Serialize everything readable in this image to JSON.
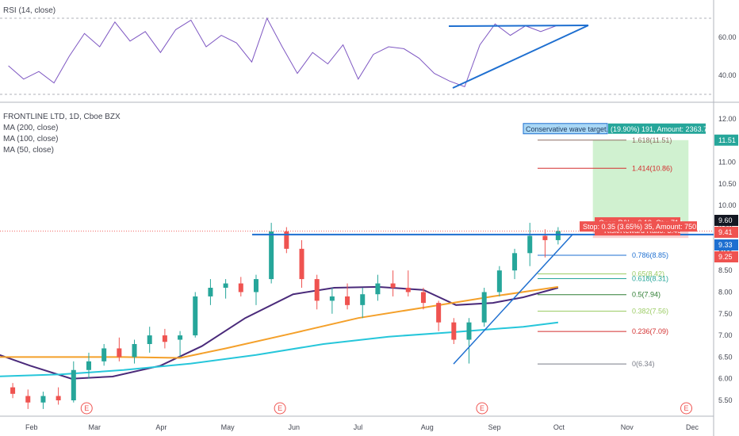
{
  "rsi_label": "RSI (14, close)",
  "main_label": "FRONTLINE LTD, 1D, Cboe BZX",
  "ma_labels": [
    "MA (200, close)",
    "MA (100, close)",
    "MA (50, close)"
  ],
  "colors": {
    "up": "#26a69a",
    "down": "#ef5350",
    "rsi": "#7e57c2",
    "trend": "#1e6fd0",
    "ma50": "#4a2a7a",
    "ma100": "#f4a02a",
    "ma200": "#26c6da",
    "target_zone": "#c8efc8",
    "stop_zone": "#f7c9c9"
  },
  "annotations": {
    "target_box": "Conservative wave target.",
    "target_stats": "(19.90%) 191, Amount: 2363.74",
    "open_pnl": "Open P&L: -0.19, Qty: 714",
    "rr_ratio": "Risk/Reward Ratio: 5.46",
    "stop_stats": "Stop: 0.35 (3.65%) 35, Amount: 750.1"
  },
  "chart_data": [
    {
      "type": "line",
      "title": "RSI (14, close)",
      "ylim": [
        28.5,
        72
      ],
      "yticks": [
        "60.00",
        "40.00"
      ],
      "levels": [
        70,
        30
      ],
      "x": [
        "2020-01-22",
        "2020-01-29",
        "2020-02-05",
        "2020-02-12",
        "2020-02-19",
        "2020-02-26",
        "2020-03-04",
        "2020-03-11",
        "2020-03-18",
        "2020-03-25",
        "2020-04-01",
        "2020-04-08",
        "2020-04-15",
        "2020-04-22",
        "2020-04-29",
        "2020-05-06",
        "2020-05-13",
        "2020-05-20",
        "2020-05-27",
        "2020-06-03",
        "2020-06-10",
        "2020-06-17",
        "2020-06-24",
        "2020-07-01",
        "2020-07-08",
        "2020-07-15",
        "2020-07-22",
        "2020-07-29",
        "2020-08-05",
        "2020-08-12",
        "2020-08-19",
        "2020-08-26",
        "2020-09-02",
        "2020-09-09",
        "2020-09-16",
        "2020-09-23",
        "2020-09-30"
      ],
      "values": [
        45,
        38,
        42,
        36,
        50,
        62,
        55,
        68,
        58,
        63,
        52,
        64,
        69,
        55,
        61,
        57,
        47,
        70,
        55,
        41,
        52,
        46,
        56,
        38,
        51,
        55,
        54,
        49,
        41,
        37,
        34,
        56,
        67,
        61,
        66,
        63,
        66
      ]
    },
    {
      "type": "candlestick",
      "title": "FRONTLINE LTD, 1D, Cboe BZX",
      "x_ticks": [
        "Feb",
        "Mar",
        "Apr",
        "May",
        "Jun",
        "Jul",
        "Aug",
        "Sep",
        "Oct",
        "Nov",
        "Dec"
      ],
      "ylim": [
        5.25,
        12.2
      ],
      "yticks": [
        "12.00",
        "11.50",
        "11.00",
        "10.50",
        "10.00",
        "9.50",
        "9.00",
        "8.50",
        "8.00",
        "7.50",
        "7.00",
        "6.50",
        "6.00",
        "5.50"
      ],
      "candles": [
        {
          "d": "2020-01-24",
          "o": 5.8,
          "h": 5.9,
          "l": 5.55,
          "c": 5.65
        },
        {
          "d": "2020-01-31",
          "o": 5.6,
          "h": 5.75,
          "l": 5.3,
          "c": 5.45
        },
        {
          "d": "2020-02-07",
          "o": 5.45,
          "h": 5.7,
          "l": 5.3,
          "c": 5.6
        },
        {
          "d": "2020-02-14",
          "o": 5.6,
          "h": 5.8,
          "l": 5.4,
          "c": 5.5
        },
        {
          "d": "2020-02-21",
          "o": 5.5,
          "h": 6.4,
          "l": 5.45,
          "c": 6.2
        },
        {
          "d": "2020-02-28",
          "o": 6.2,
          "h": 6.6,
          "l": 6.0,
          "c": 6.4
        },
        {
          "d": "2020-03-06",
          "o": 6.4,
          "h": 6.8,
          "l": 6.3,
          "c": 6.7
        },
        {
          "d": "2020-03-13",
          "o": 6.7,
          "h": 6.95,
          "l": 6.4,
          "c": 6.5
        },
        {
          "d": "2020-03-20",
          "o": 6.5,
          "h": 6.9,
          "l": 6.35,
          "c": 6.8
        },
        {
          "d": "2020-03-27",
          "o": 6.8,
          "h": 7.2,
          "l": 6.6,
          "c": 7.0
        },
        {
          "d": "2020-04-03",
          "o": 7.0,
          "h": 7.15,
          "l": 6.7,
          "c": 6.85
        },
        {
          "d": "2020-04-10",
          "o": 6.9,
          "h": 7.1,
          "l": 6.5,
          "c": 7.0
        },
        {
          "d": "2020-04-17",
          "o": 7.0,
          "h": 8.0,
          "l": 6.95,
          "c": 7.9
        },
        {
          "d": "2020-04-24",
          "o": 7.9,
          "h": 8.3,
          "l": 7.7,
          "c": 8.1
        },
        {
          "d": "2020-05-01",
          "o": 8.1,
          "h": 8.3,
          "l": 7.85,
          "c": 8.2
        },
        {
          "d": "2020-05-08",
          "o": 8.2,
          "h": 8.35,
          "l": 7.9,
          "c": 8.0
        },
        {
          "d": "2020-05-15",
          "o": 8.0,
          "h": 8.4,
          "l": 7.7,
          "c": 8.3
        },
        {
          "d": "2020-05-22",
          "o": 8.3,
          "h": 9.6,
          "l": 8.2,
          "c": 9.4
        },
        {
          "d": "2020-05-29",
          "o": 9.4,
          "h": 9.5,
          "l": 8.9,
          "c": 9.0
        },
        {
          "d": "2020-06-05",
          "o": 9.0,
          "h": 9.2,
          "l": 8.1,
          "c": 8.3
        },
        {
          "d": "2020-06-12",
          "o": 8.3,
          "h": 8.4,
          "l": 7.6,
          "c": 7.8
        },
        {
          "d": "2020-06-19",
          "o": 7.8,
          "h": 8.1,
          "l": 7.5,
          "c": 7.9
        },
        {
          "d": "2020-06-26",
          "o": 7.9,
          "h": 8.2,
          "l": 7.6,
          "c": 7.7
        },
        {
          "d": "2020-07-03",
          "o": 7.7,
          "h": 8.1,
          "l": 7.4,
          "c": 7.95
        },
        {
          "d": "2020-07-10",
          "o": 7.95,
          "h": 8.4,
          "l": 7.8,
          "c": 8.2
        },
        {
          "d": "2020-07-17",
          "o": 8.2,
          "h": 8.5,
          "l": 7.9,
          "c": 8.1
        },
        {
          "d": "2020-07-24",
          "o": 8.1,
          "h": 8.5,
          "l": 7.9,
          "c": 8.0
        },
        {
          "d": "2020-07-31",
          "o": 8.0,
          "h": 8.1,
          "l": 7.6,
          "c": 7.75
        },
        {
          "d": "2020-08-07",
          "o": 7.75,
          "h": 7.8,
          "l": 7.1,
          "c": 7.3
        },
        {
          "d": "2020-08-14",
          "o": 7.3,
          "h": 7.4,
          "l": 6.8,
          "c": 6.9
        },
        {
          "d": "2020-08-21",
          "o": 6.9,
          "h": 7.4,
          "l": 6.35,
          "c": 7.3
        },
        {
          "d": "2020-08-28",
          "o": 7.3,
          "h": 8.1,
          "l": 7.2,
          "c": 8.0
        },
        {
          "d": "2020-09-04",
          "o": 8.0,
          "h": 8.6,
          "l": 7.9,
          "c": 8.5
        },
        {
          "d": "2020-09-11",
          "o": 8.5,
          "h": 9.0,
          "l": 8.3,
          "c": 8.9
        },
        {
          "d": "2020-09-18",
          "o": 8.9,
          "h": 9.6,
          "l": 8.6,
          "c": 9.3
        },
        {
          "d": "2020-09-25",
          "o": 9.3,
          "h": 9.45,
          "l": 8.8,
          "c": 9.2
        },
        {
          "d": "2020-10-01",
          "o": 9.2,
          "h": 9.5,
          "l": 9.1,
          "c": 9.41
        }
      ],
      "moving_averages": [
        {
          "name": "MA (50, close)",
          "x": [
            "2020-01-15",
            "2020-02-01",
            "2020-02-20",
            "2020-03-10",
            "2020-04-01",
            "2020-04-20",
            "2020-05-10",
            "2020-06-01",
            "2020-06-20",
            "2020-07-10",
            "2020-07-31",
            "2020-08-15",
            "2020-09-01",
            "2020-09-15",
            "2020-10-01"
          ],
          "values": [
            6.6,
            6.3,
            6.0,
            6.05,
            6.3,
            6.75,
            7.4,
            7.95,
            8.1,
            8.12,
            8.05,
            7.7,
            7.75,
            7.88,
            8.1
          ]
        },
        {
          "name": "MA (100, close)",
          "x": [
            "2020-01-15",
            "2020-02-15",
            "2020-03-15",
            "2020-04-10",
            "2020-05-01",
            "2020-06-01",
            "2020-07-01",
            "2020-08-01",
            "2020-09-01",
            "2020-10-01"
          ],
          "values": [
            6.5,
            6.5,
            6.5,
            6.48,
            6.7,
            7.05,
            7.4,
            7.65,
            7.9,
            8.12
          ]
        },
        {
          "name": "MA (200, close)",
          "x": [
            "2020-01-15",
            "2020-02-15",
            "2020-03-15",
            "2020-04-15",
            "2020-05-15",
            "2020-06-15",
            "2020-07-15",
            "2020-08-15",
            "2020-09-15",
            "2020-10-01"
          ],
          "values": [
            6.05,
            6.1,
            6.2,
            6.35,
            6.55,
            6.8,
            6.97,
            7.08,
            7.2,
            7.3
          ]
        }
      ],
      "fib_levels": [
        {
          "label": "1.618(11.51)",
          "value": 11.51
        },
        {
          "label": "1.414(10.86)",
          "value": 10.86
        },
        {
          "label": "0.786(8.85)",
          "value": 8.85
        },
        {
          "label": "0.65(8.42)",
          "value": 8.42
        },
        {
          "label": "0.618(8.31)",
          "value": 8.31
        },
        {
          "label": "0.5(7.94)",
          "value": 7.94
        },
        {
          "label": "0.382(7.56)",
          "value": 7.56
        },
        {
          "label": "0.236(7.09)",
          "value": 7.09
        },
        {
          "label": "0(6.34)",
          "value": 6.34
        }
      ],
      "position": {
        "entry": 9.6,
        "target": 11.51,
        "stop": 9.25,
        "start": "2020-10-17",
        "end": "2020-11-30"
      },
      "price_tags": [
        {
          "label": "11.51",
          "value": 11.51,
          "color": "#26a69a"
        },
        {
          "label": "9.60",
          "value": 9.6,
          "color": "#131722"
        },
        {
          "label": "9.41",
          "value": 9.41,
          "color": "#ef5350"
        },
        {
          "label": "9.33",
          "value": 9.33,
          "color": "#1e6fd0"
        },
        {
          "label": "9.25",
          "value": 9.25,
          "color": "#ef5350"
        }
      ],
      "earnings_markers": [
        "2020-02-27",
        "2020-05-26",
        "2020-08-27",
        "2020-11-29"
      ]
    }
  ]
}
